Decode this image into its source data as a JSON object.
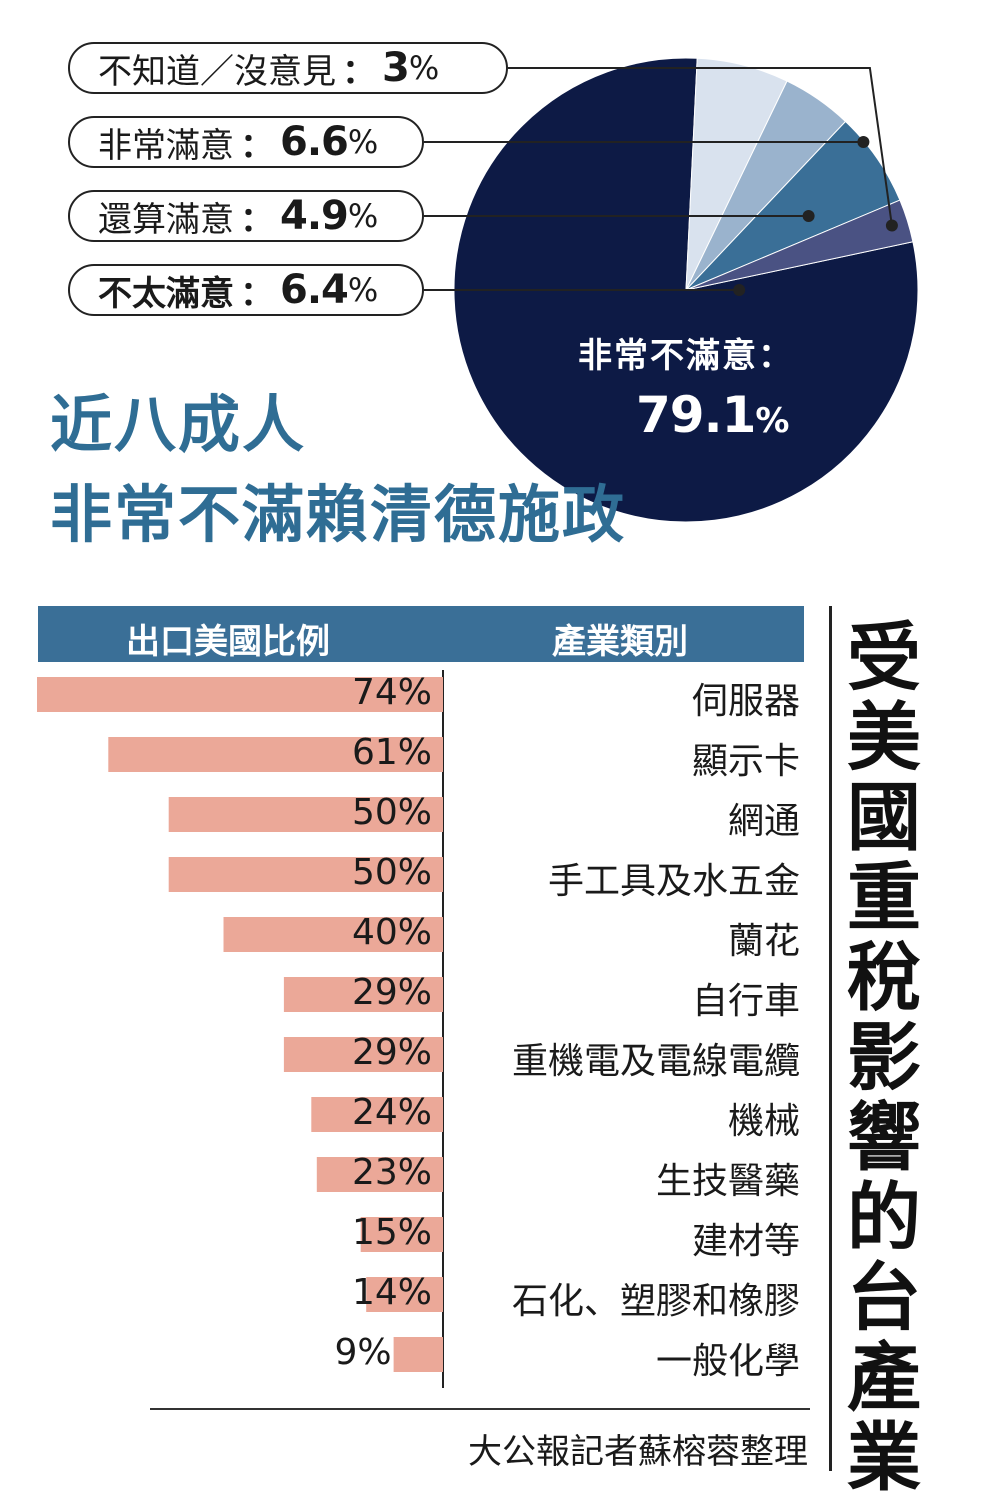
{
  "pie": {
    "headline_line1": "近八成人",
    "headline_line2": "非常不滿賴清德施政",
    "big_slice": {
      "label": "非常不滿意：",
      "value": "79.1",
      "pct": "%"
    },
    "small_slices": [
      {
        "label": "不知道／沒意見",
        "colon": "：",
        "value": "3",
        "pct": "%"
      },
      {
        "label": "非常滿意",
        "colon": "：",
        "value": "6.6",
        "pct": "%"
      },
      {
        "label": "還算滿意",
        "colon": "：",
        "value": "4.9",
        "pct": "%"
      },
      {
        "label": "不太滿意",
        "colon": "：",
        "value": "6.4",
        "pct": "%"
      }
    ]
  },
  "table": {
    "col_left": "出口美國比例",
    "col_right": "產業類別",
    "side_title": "受美國重稅影響的台產業",
    "credit": "大公報記者蘇榕蓉整理"
  },
  "chart_data": [
    {
      "type": "pie",
      "slices": [
        {
          "label": "非常不滿意",
          "value": 79.1,
          "color": "#0d1a45"
        },
        {
          "label": "不太滿意",
          "value": 6.4,
          "color": "#d9e2ee"
        },
        {
          "label": "還算滿意",
          "value": 4.9,
          "color": "#9ab3cd"
        },
        {
          "label": "非常滿意",
          "value": 6.6,
          "color": "#3a6f97"
        },
        {
          "label": "不知道／沒意見",
          "value": 3,
          "color": "#4a5283"
        }
      ]
    },
    {
      "type": "bar",
      "title": "受美國重稅影響的台產業",
      "xlabel": "出口美國比例",
      "ylabel": "產業類別",
      "bar_color": "#eba898",
      "categories": [
        "伺服器",
        "顯示卡",
        "網通",
        "手工具及水五金",
        "蘭花",
        "自行車",
        "重機電及電線電纜",
        "機械",
        "生技醫藥",
        "建材等",
        "石化、塑膠和橡膠",
        "一般化學"
      ],
      "values": [
        74,
        61,
        50,
        50,
        40,
        29,
        29,
        24,
        23,
        15,
        14,
        9
      ],
      "value_labels": [
        "74%",
        "61%",
        "50%",
        "50%",
        "40%",
        "29%",
        "29%",
        "24%",
        "23%",
        "15%",
        "14%",
        "9%"
      ]
    }
  ]
}
